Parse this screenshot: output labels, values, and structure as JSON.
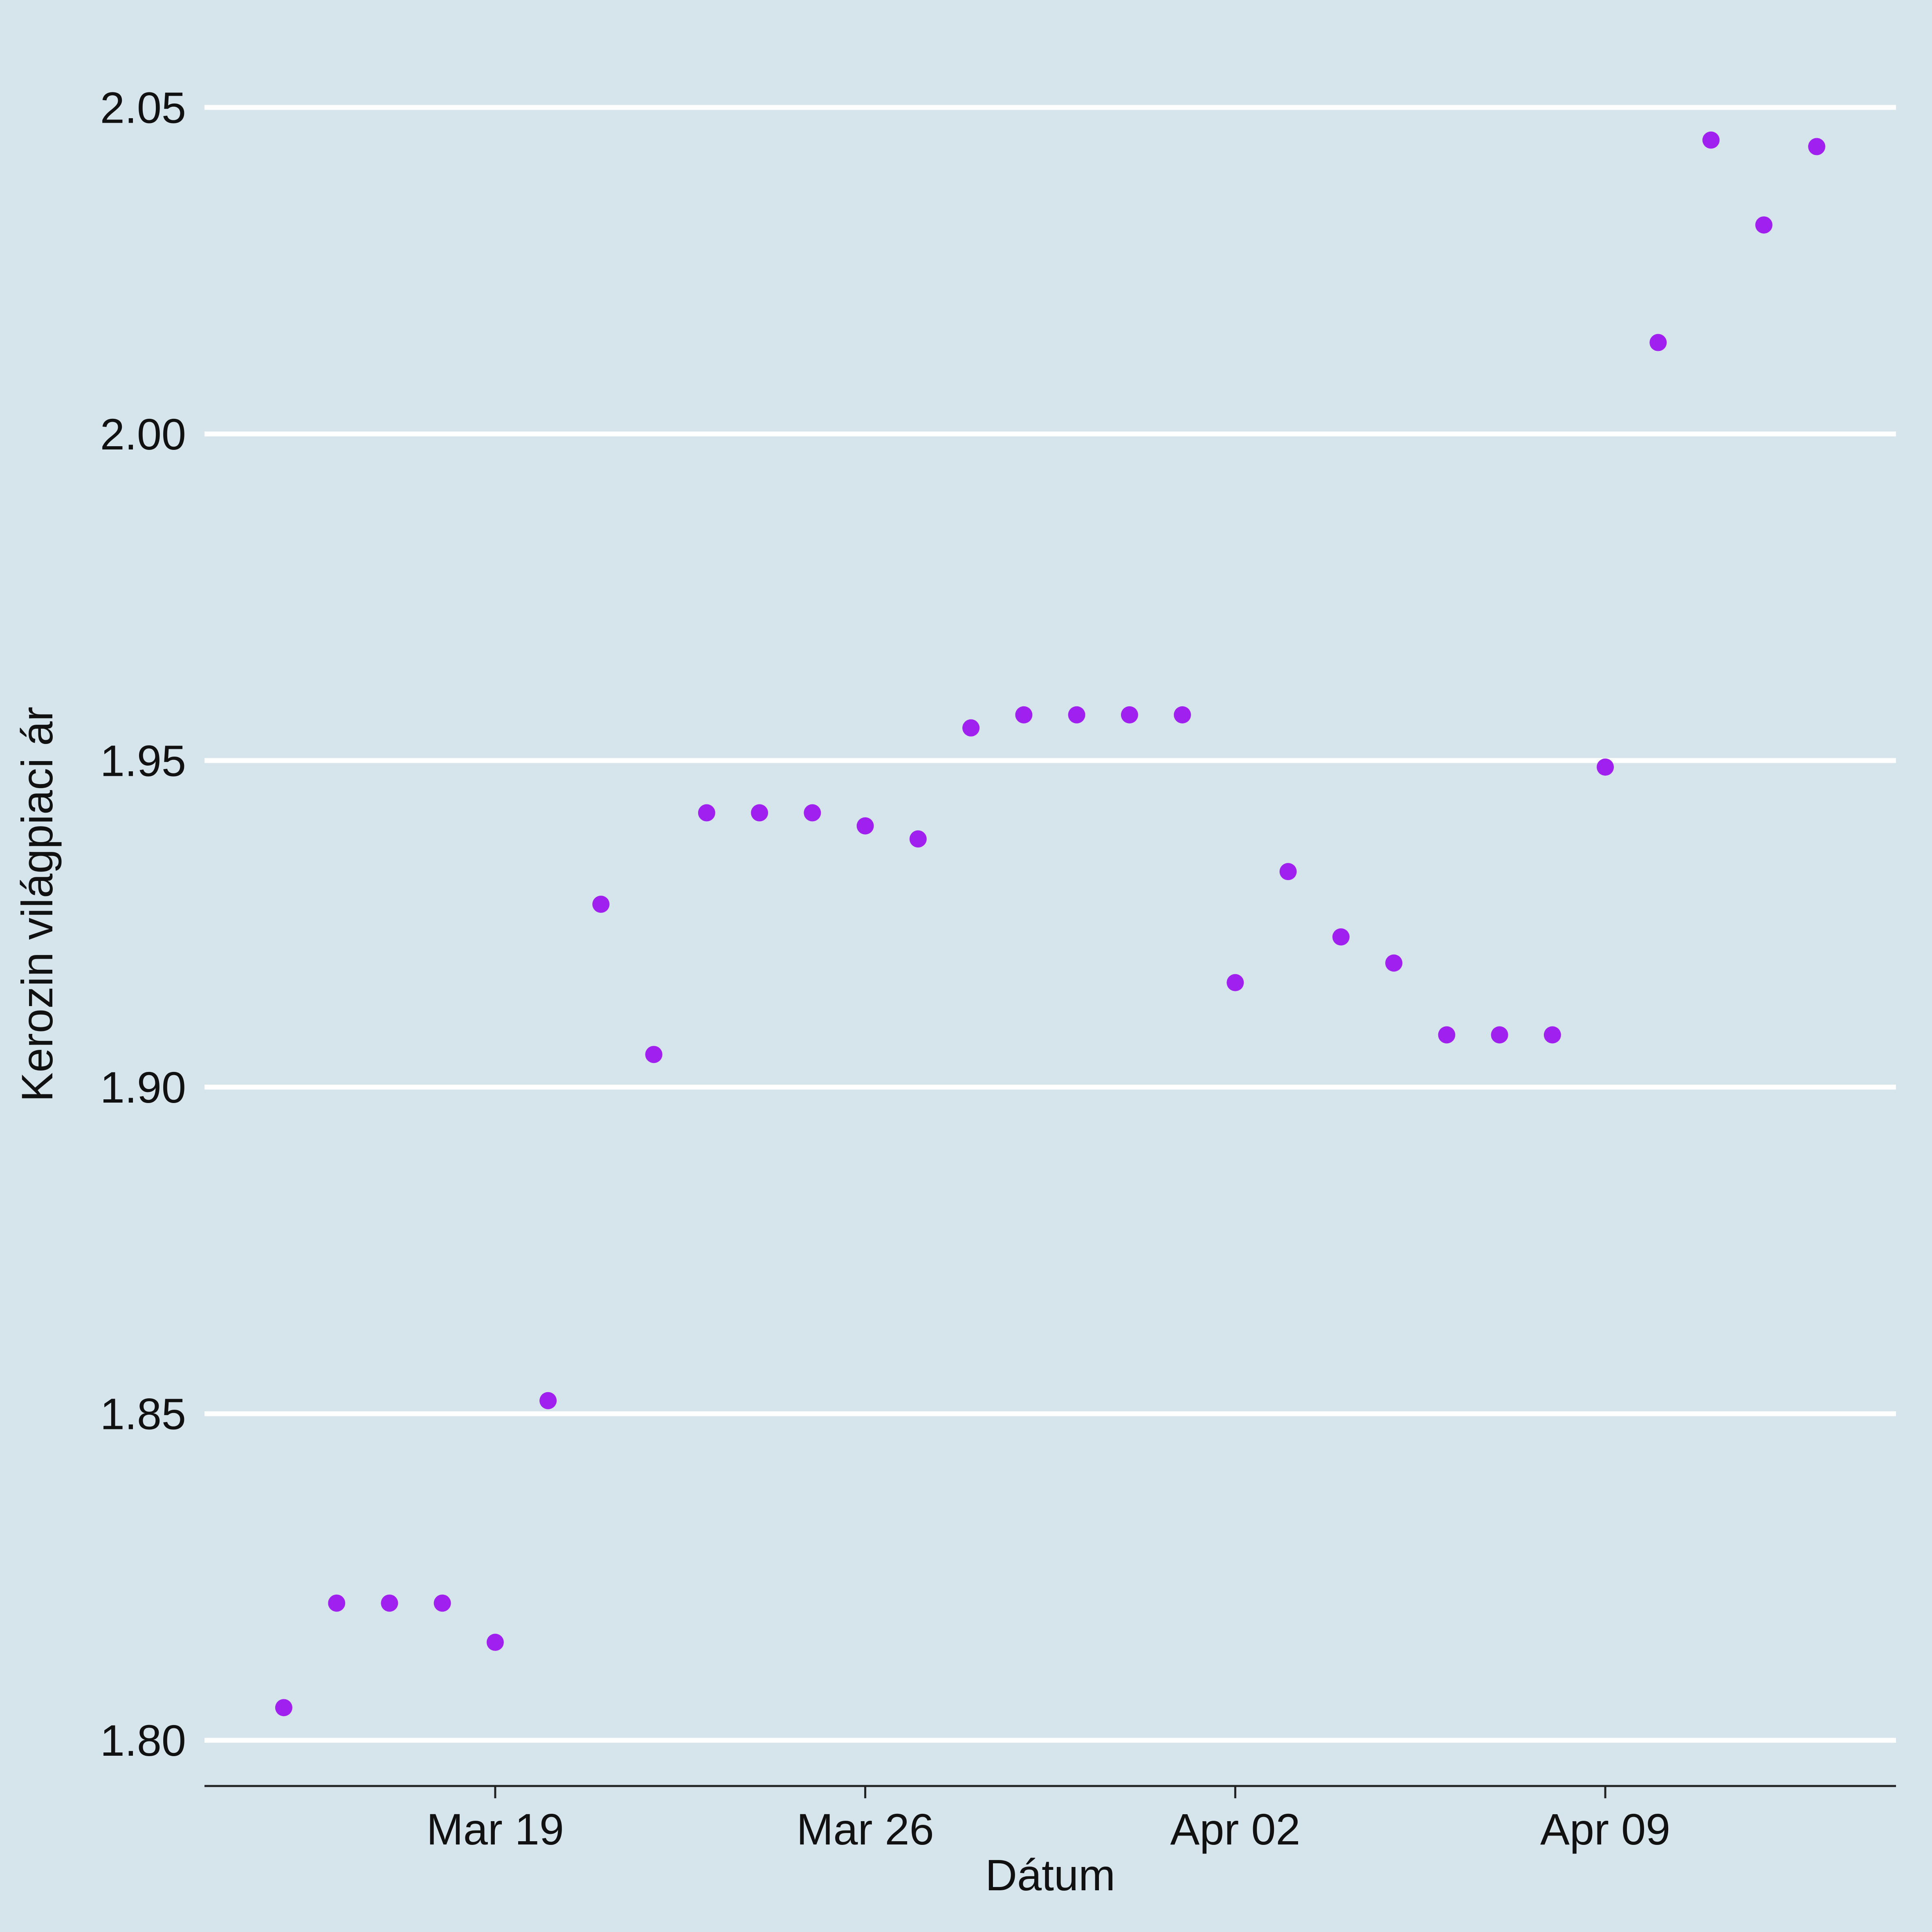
{
  "colors": {
    "background": "#d6e4eb",
    "grid": "#ffffff",
    "axis": "#222222",
    "text": "#111111",
    "point": "#a020f0"
  },
  "chart_data": {
    "type": "scatter",
    "xlabel": "Dátum",
    "ylabel": "Kerozin világpiaci ár",
    "x_tick_labels": [
      {
        "date": "2018-03-19",
        "label": "Mar 19"
      },
      {
        "date": "2018-03-26",
        "label": "Mar 26"
      },
      {
        "date": "2018-04-02",
        "label": "Apr 02"
      },
      {
        "date": "2018-04-09",
        "label": "Apr 09"
      }
    ],
    "y_ticks": [
      1.8,
      1.85,
      1.9,
      1.95,
      2.0,
      2.05
    ],
    "y_tick_labels": [
      "1.80",
      "1.85",
      "1.90",
      "1.95",
      "2.00",
      "2.05"
    ],
    "xlim": [
      "2018-03-13 12:00",
      "2018-04-14 12:00"
    ],
    "ylim": [
      1.793,
      2.063
    ],
    "grid": {
      "horizontal": true,
      "vertical": false
    },
    "points": [
      {
        "x": "2018-03-15",
        "y": 1.805
      },
      {
        "x": "2018-03-16",
        "y": 1.821
      },
      {
        "x": "2018-03-17",
        "y": 1.821
      },
      {
        "x": "2018-03-18",
        "y": 1.821
      },
      {
        "x": "2018-03-19",
        "y": 1.815
      },
      {
        "x": "2018-03-20",
        "y": 1.852
      },
      {
        "x": "2018-03-21",
        "y": 1.928
      },
      {
        "x": "2018-03-22",
        "y": 1.905
      },
      {
        "x": "2018-03-23",
        "y": 1.942
      },
      {
        "x": "2018-03-24",
        "y": 1.942
      },
      {
        "x": "2018-03-25",
        "y": 1.942
      },
      {
        "x": "2018-03-26",
        "y": 1.94
      },
      {
        "x": "2018-03-27",
        "y": 1.938
      },
      {
        "x": "2018-03-28",
        "y": 1.955
      },
      {
        "x": "2018-03-29",
        "y": 1.957
      },
      {
        "x": "2018-03-30",
        "y": 1.957
      },
      {
        "x": "2018-03-31",
        "y": 1.957
      },
      {
        "x": "2018-04-01",
        "y": 1.957
      },
      {
        "x": "2018-04-02",
        "y": 1.916
      },
      {
        "x": "2018-04-03",
        "y": 1.933
      },
      {
        "x": "2018-04-04",
        "y": 1.923
      },
      {
        "x": "2018-04-05",
        "y": 1.919
      },
      {
        "x": "2018-04-06",
        "y": 1.908
      },
      {
        "x": "2018-04-07",
        "y": 1.908
      },
      {
        "x": "2018-04-08",
        "y": 1.908
      },
      {
        "x": "2018-04-09",
        "y": 1.949
      },
      {
        "x": "2018-04-10",
        "y": 2.014
      },
      {
        "x": "2018-04-11",
        "y": 2.045
      },
      {
        "x": "2018-04-12",
        "y": 2.032
      },
      {
        "x": "2018-04-13",
        "y": 2.044
      }
    ]
  }
}
